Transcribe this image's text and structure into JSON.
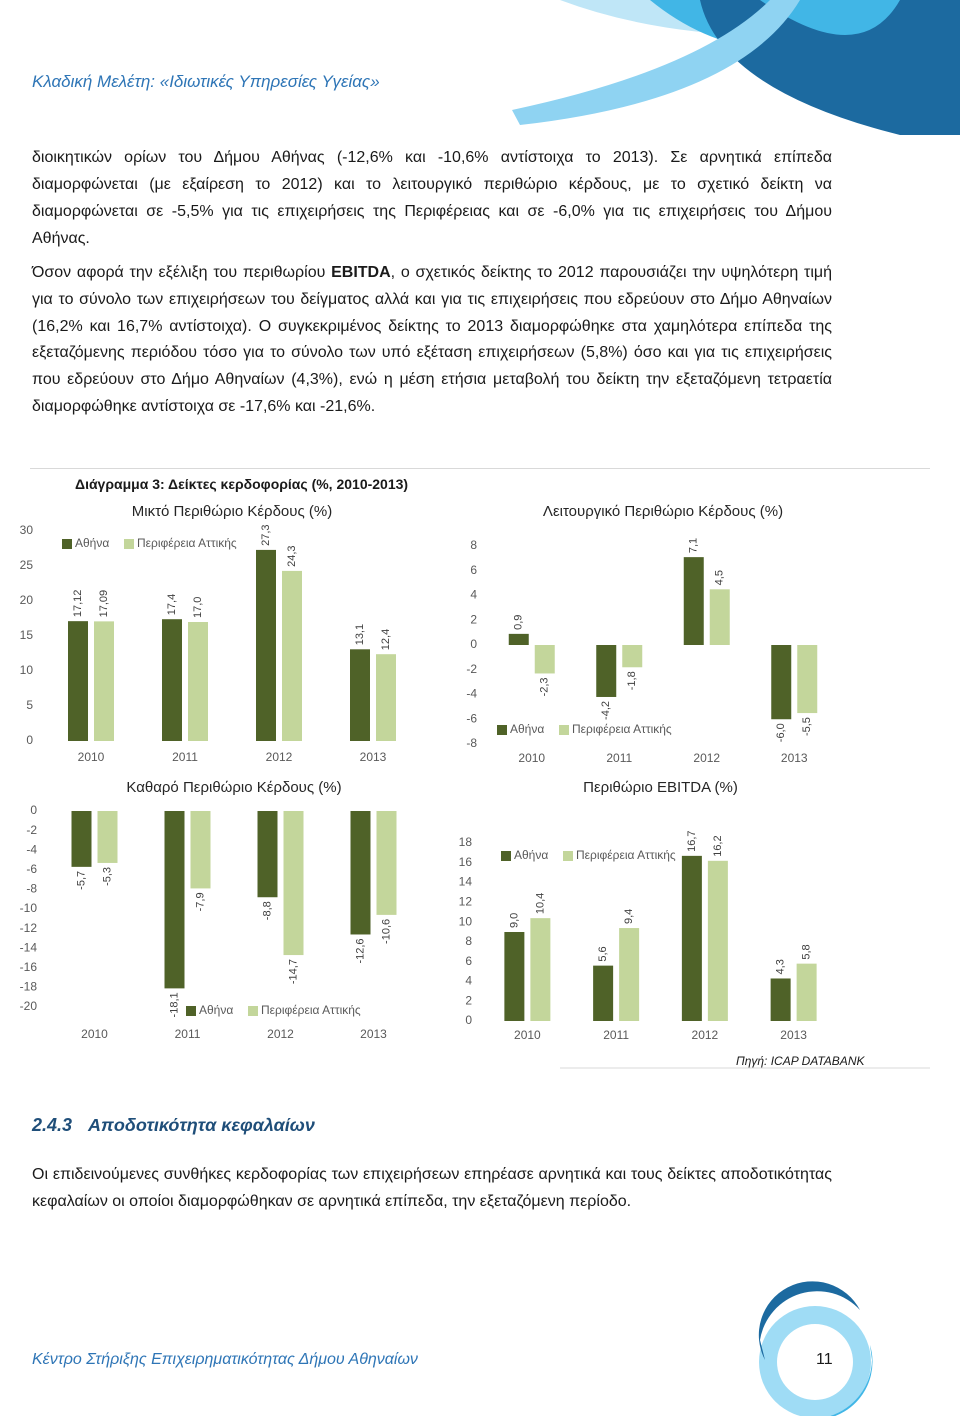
{
  "header": {
    "title": "Κλαδική Μελέτη: «Ιδιωτικές Υπηρεσίες Υγείας»"
  },
  "paragraphs": [
    {
      "text": "διοικητικών ορίων του Δήμου Αθήνας (-12,6% και -10,6% αντίστοιχα το 2013). Σε αρνητικά επίπεδα διαμορφώνεται (με εξαίρεση το 2012) και το λειτουργικό περιθώριο κέρδους, με το σχετικό δείκτη να διαμορφώνεται σε -5,5% για τις επιχειρήσεις της Περιφέρειας και σε -6,0% για τις επιχειρήσεις του Δήμου Αθήνας."
    },
    {
      "before": "Όσον αφορά την εξέλιξη του περιθωρίου ",
      "bold": "EBITDA",
      "after": ", ο σχετικός δείκτης το 2012 παρουσιάζει την υψηλότερη τιμή για το σύνολο των επιχειρήσεων του δείγματος αλλά και για τις επιχειρήσεις που εδρεύουν στο Δήμο Αθηναίων (16,2% και 16,7% αντίστοιχα). Ο συγκεκριμένος δείκτης το 2013 διαμορφώθηκε στα χαμηλότερα επίπεδα της εξεταζόμενης περιόδου τόσο για το σύνολο των υπό εξέταση επιχειρήσεων (5,8%) όσο και για τις επιχειρήσεις που εδρεύουν στο Δήμο Αθηναίων (4,3%), ενώ η μέση ετήσια μεταβολή του δείκτη την εξεταζόμενη τετραετία διαμορφώθηκε αντίστοιχα σε -17,6% και -21,6%."
    }
  ],
  "figure_title": "Διάγραμμα 3: Δείκτες κερδοφορίας (%, 2010-2013)",
  "chart_data": [
    {
      "type": "bar",
      "title": "Μικτό Περιθώριο Κέρδους (%)",
      "categories": [
        "2010",
        "2011",
        "2012",
        "2013"
      ],
      "series": [
        {
          "name": "Αθήνα",
          "color": "#4f6228",
          "values": [
            17.12,
            17.4,
            27.3,
            13.1
          ],
          "value_labels": [
            "17,12",
            "17,4",
            "27,3",
            "13,1"
          ]
        },
        {
          "name": "Περιφέρεια Αττικής",
          "color": "#c3d69b",
          "values": [
            17.09,
            17.0,
            24.3,
            12.4
          ],
          "value_labels": [
            "17,09",
            "17,0",
            "24,3",
            "12,4"
          ]
        }
      ],
      "ylim": [
        0,
        30
      ],
      "yticks": [
        0,
        5,
        10,
        15,
        20,
        25,
        30
      ],
      "legend": "top-left"
    },
    {
      "type": "bar",
      "title": "Λειτουργικό Περιθώριο Κέρδους (%)",
      "categories": [
        "2010",
        "2011",
        "2012",
        "2013"
      ],
      "series": [
        {
          "name": "Αθήνα",
          "color": "#4f6228",
          "values": [
            0.9,
            -4.2,
            7.1,
            -6.0
          ],
          "value_labels": [
            "0,9",
            "-4,2",
            "7,1",
            "-6,0"
          ]
        },
        {
          "name": "Περιφέρεια Αττικής",
          "color": "#c3d69b",
          "values": [
            -2.3,
            -1.8,
            4.5,
            -5.5
          ],
          "value_labels": [
            "-2,3",
            "-1,8",
            "4,5",
            "-5,5"
          ]
        }
      ],
      "ylim": [
        -8,
        8
      ],
      "yticks": [
        -8,
        -6,
        -4,
        -2,
        0,
        2,
        4,
        6,
        8
      ],
      "legend": "bottom-left"
    },
    {
      "type": "bar",
      "title": "Καθαρό Περιθώριο Κέρδους (%)",
      "categories": [
        "2010",
        "2011",
        "2012",
        "2013"
      ],
      "series": [
        {
          "name": "Αθήνα",
          "color": "#4f6228",
          "values": [
            -5.7,
            -18.1,
            -8.8,
            -12.6
          ],
          "value_labels": [
            "-5,7",
            "-18,1",
            "-8,8",
            "-12,6"
          ]
        },
        {
          "name": "Περιφέρεια Αττικής",
          "color": "#c3d69b",
          "values": [
            -5.3,
            -7.9,
            -14.7,
            -10.6
          ],
          "value_labels": [
            "-5,3",
            "-7,9",
            "-14,7",
            "-10,6"
          ]
        }
      ],
      "ylim": [
        -20,
        0
      ],
      "yticks": [
        -20,
        -18,
        -16,
        -14,
        -12,
        -10,
        -8,
        -6,
        -4,
        -2,
        0
      ],
      "legend": "bottom"
    },
    {
      "type": "bar",
      "title": "Περιθώριο EBITDA (%)",
      "categories": [
        "2010",
        "2011",
        "2012",
        "2013"
      ],
      "series": [
        {
          "name": "Αθήνα",
          "color": "#4f6228",
          "values": [
            9.0,
            5.6,
            16.7,
            4.3
          ],
          "value_labels": [
            "9,0",
            "5,6",
            "16,7",
            "4,3"
          ]
        },
        {
          "name": "Περιφέρεια Αττικής",
          "color": "#c3d69b",
          "values": [
            10.4,
            9.4,
            16.2,
            5.8
          ],
          "value_labels": [
            "10,4",
            "9,4",
            "16,2",
            "5,8"
          ]
        }
      ],
      "ylim": [
        0,
        18
      ],
      "yticks": [
        0,
        2,
        4,
        6,
        8,
        10,
        12,
        14,
        16,
        18
      ],
      "legend": "top-left"
    }
  ],
  "source": "Πηγή: ICAP DATABANK",
  "section": {
    "number": "2.4.3",
    "title": "Αποδοτικότητα κεφαλαίων",
    "text": "Οι επιδεινούμενες συνθήκες κερδοφορίας των επιχειρήσεων επηρέασε αρνητικά και τους δείκτες αποδοτικότητας κεφαλαίων οι οποίοι διαμορφώθηκαν σε αρνητικά επίπεδα, την εξεταζόμενη περίοδο."
  },
  "footer": {
    "text": "Κέντρο Στήριξης Επιχειρηματικότητας Δήμου Αθηναίων",
    "page": "11"
  }
}
